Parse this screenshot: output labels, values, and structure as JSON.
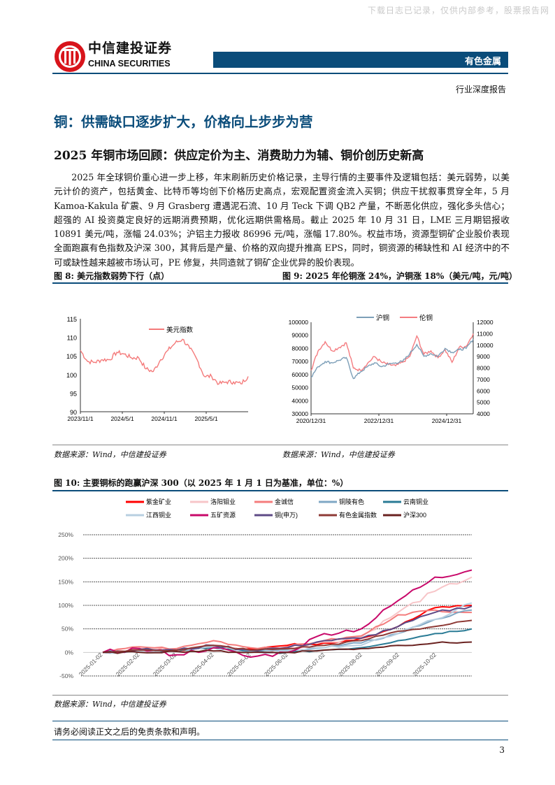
{
  "watermark": "下载日志已记录，仅供内部参考，股票报告网",
  "header": {
    "logo_cn": "中信建投证券",
    "logo_en": "CHINA SECURITIES",
    "sector": "有色金属",
    "report_type": "行业深度报告"
  },
  "title": "铜：供需缺口逐步扩大，价格向上步步为营",
  "subtitle": "2025 年铜市场回顾：供应定价为主、消费助力为辅、铜价创历史新高",
  "paragraph": "2025 年全球铜价重心进一步上移，年末刷新历史价格记录，主导行情的主要事件及逻辑包括：美元弱势，以美元计价的资产，包括黄金、比特币等均创下价格历史高点，宏观配置资金流入买铜；供应干扰叙事贯穿全年，5 月 Kamoa-Kakula 矿震、9 月 Grasberg 遭遇泥石流、10 月 Teck 下调 QB2 产量，不断恶化供应，强化多头信心；超强的 AI 投资奠定良好的远期消费预期，优化远期供需格局。截止 2025 年 10 月 31 日，LME 三月期铝报收 10891 美元/吨，涨幅 24.03%；沪铝主力报收 86996 元/吨，涨幅 17.80%。权益市场，资源型铜矿企业股价表现全面跑赢有色指数及沪深 300，其背后是产量、价格的双向提升推高 EPS，同时，铜资源的稀缺性和 AI 经济中的不可或缺性越来越被市场认可，PE 修复，共同造就了铜矿企业优异的股价表现。",
  "figures": {
    "fig8_title": "图 8: 美元指数弱势下行（点）",
    "fig9_title": "图 9: 2025 年伦铜涨 24%，沪铜涨 18%（美元/吨，元/吨）",
    "fig10_title": "图 10: 主要铜标的跑赢沪深 300（以 2025 年 1 月 1 日为基准，单位：%）",
    "source": "数据来源：Wind，中信建投证券"
  },
  "chart_data": [
    {
      "type": "line",
      "ylim": [
        90,
        115
      ],
      "yticks": [
        "90",
        "95",
        "100",
        "105",
        "110",
        "115"
      ],
      "xticks": [
        "2023/11/1",
        "2024/5/1",
        "2024/11/1",
        "2025/5/1"
      ],
      "legend_position": "top-center",
      "colors": [
        "#f47a7a"
      ],
      "series": [
        {
          "name": "美元指数",
          "values": [
            106.5,
            103.5,
            103.3,
            104,
            104,
            106,
            105.5,
            104.5,
            104.5,
            101.5,
            100.8,
            104,
            106.5,
            108.5,
            109.5,
            107,
            104,
            99.5,
            99.5,
            97.5,
            98,
            98,
            97.5,
            99.5
          ]
        }
      ]
    },
    {
      "type": "line",
      "ylim_left": [
        30000,
        100000
      ],
      "ylim_right": [
        4000,
        12000
      ],
      "yticks_left": [
        "30000",
        "40000",
        "50000",
        "60000",
        "70000",
        "80000",
        "90000",
        "100000"
      ],
      "yticks_right": [
        "4000",
        "5000",
        "6000",
        "7000",
        "8000",
        "9000",
        "10000",
        "11000",
        "12000"
      ],
      "xticks": [
        "2020/12/31",
        "2022/12/31",
        "2024/12/31"
      ],
      "legend_position": "top-center",
      "colors": [
        "#7d9fb8",
        "#f47c80"
      ],
      "series": [
        {
          "name": "沪铜",
          "axis": "left",
          "values": [
            58000,
            66000,
            70000,
            69000,
            71000,
            73000,
            57000,
            62000,
            66000,
            69000,
            66000,
            68000,
            69000,
            70000,
            76000,
            83000,
            74000,
            76000,
            74000,
            80000,
            77000,
            79000,
            80000,
            87000
          ]
        },
        {
          "name": "伦铜",
          "axis": "right",
          "values": [
            7800,
            9500,
            10300,
            9500,
            9800,
            10200,
            8000,
            7800,
            8400,
            9000,
            8500,
            8300,
            8200,
            8500,
            9000,
            10800,
            9200,
            9500,
            8900,
            9600,
            8500,
            9800,
            9900,
            11000
          ]
        }
      ]
    },
    {
      "type": "line",
      "ylim": [
        -50,
        250
      ],
      "yticks": [
        "-50%",
        "0%",
        "50%",
        "100%",
        "150%",
        "200%",
        "250%"
      ],
      "xticks": [
        "2025-01-02",
        "2025-02-02",
        "2025-03-02",
        "2025-04-02",
        "2025-05-02",
        "2025-06-02",
        "2025-07-02",
        "2025-08-02",
        "2025-09-02",
        "2025-10-02"
      ],
      "grid": true,
      "legend_position": "top",
      "series": [
        {
          "name": "紫金矿业",
          "color": "#ff0000",
          "values": [
            0,
            8,
            5,
            12,
            8,
            15,
            20,
            30,
            55,
            95,
            100
          ]
        },
        {
          "name": "洛阳钼业",
          "color": "#f7c5c8",
          "values": [
            0,
            8,
            5,
            15,
            3,
            10,
            22,
            33,
            85,
            130,
            160
          ]
        },
        {
          "name": "金诚信",
          "color": "#f47c7c",
          "values": [
            0,
            12,
            8,
            25,
            10,
            12,
            25,
            35,
            80,
            90,
            85
          ]
        },
        {
          "name": "铜陵有色",
          "color": "#7fa7c4",
          "values": [
            0,
            5,
            5,
            12,
            2,
            5,
            10,
            20,
            40,
            70,
            90
          ]
        },
        {
          "name": "云南铜业",
          "color": "#2a7b95",
          "values": [
            0,
            3,
            3,
            10,
            0,
            0,
            5,
            10,
            25,
            40,
            50
          ]
        },
        {
          "name": "江西铜业",
          "color": "#b8cfe0",
          "values": [
            0,
            3,
            3,
            12,
            0,
            3,
            10,
            15,
            40,
            70,
            105
          ]
        },
        {
          "name": "五矿资源",
          "color": "#c8096a",
          "values": [
            0,
            8,
            -5,
            10,
            -10,
            0,
            40,
            50,
            110,
            160,
            175
          ]
        },
        {
          "name": "铜(申万)",
          "color": "#5e4a86",
          "values": [
            0,
            6,
            5,
            15,
            5,
            10,
            25,
            30,
            55,
            85,
            98
          ]
        },
        {
          "name": "有色金属指数",
          "color": "#8e3a36",
          "values": [
            0,
            5,
            5,
            15,
            5,
            8,
            15,
            25,
            45,
            55,
            68
          ]
        },
        {
          "name": "沪深300",
          "color": "#6a2220",
          "values": [
            0,
            0,
            2,
            3,
            0,
            0,
            5,
            8,
            15,
            20,
            22
          ]
        }
      ]
    }
  ],
  "footer": {
    "disclaimer": "请务必阅读正文之后的免责条款和声明。",
    "page": "3"
  }
}
